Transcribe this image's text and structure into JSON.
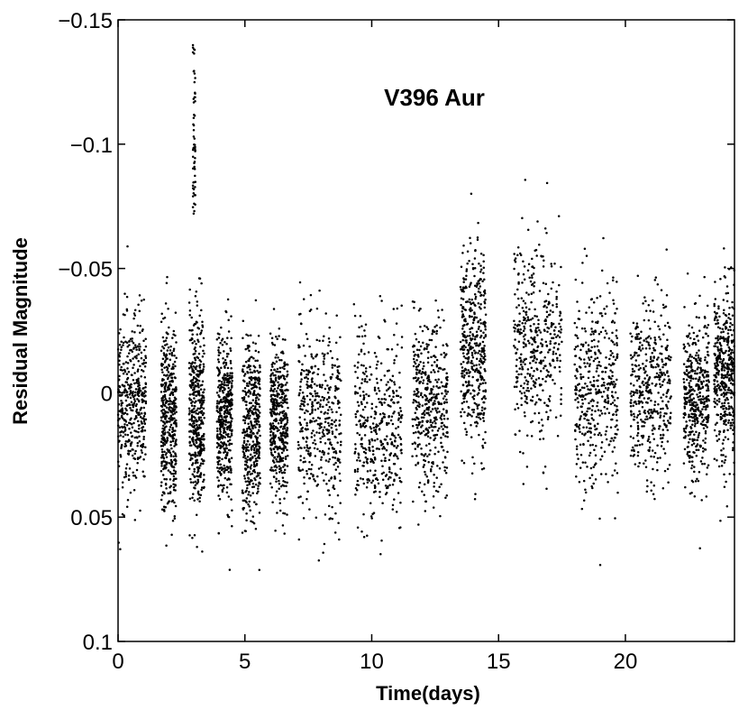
{
  "chart_data": {
    "type": "scatter",
    "title": "V396 Aur",
    "xlabel": "Time(days)",
    "ylabel": "Residual Magnitude",
    "xlim": [
      0,
      24.3
    ],
    "ylim": [
      -0.15,
      0.1
    ],
    "y_axis_inverted": true,
    "grid": false,
    "legend": "none",
    "marker_color": "#000000",
    "x_ticks": [
      0,
      5,
      10,
      15,
      20
    ],
    "x_tick_labels": [
      "0",
      "5",
      "10",
      "15",
      "20"
    ],
    "y_ticks": [
      -0.15,
      -0.1,
      -0.05,
      0,
      0.05,
      0.1
    ],
    "y_tick_labels": [
      "−0.15",
      "−0.1",
      "−0.05",
      "0",
      "0.05",
      "0.1"
    ],
    "observing_windows": [
      {
        "x_range": [
          0.0,
          1.1
        ],
        "mean": 0.005,
        "spread": 0.017
      },
      {
        "x_range": [
          1.7,
          2.3
        ],
        "mean": 0.01,
        "spread": 0.018
      },
      {
        "x_range": [
          2.8,
          3.4
        ],
        "mean": 0.007,
        "spread": 0.02
      },
      {
        "x_range": [
          3.9,
          4.5
        ],
        "mean": 0.01,
        "spread": 0.016
      },
      {
        "x_range": [
          4.9,
          5.6
        ],
        "mean": 0.015,
        "spread": 0.017
      },
      {
        "x_range": [
          6.0,
          6.7
        ],
        "mean": 0.012,
        "spread": 0.016
      },
      {
        "x_range": [
          7.1,
          8.8
        ],
        "mean": 0.01,
        "spread": 0.018
      },
      {
        "x_range": [
          9.3,
          11.2
        ],
        "mean": 0.012,
        "spread": 0.019
      },
      {
        "x_range": [
          11.6,
          13.0
        ],
        "mean": 0.005,
        "spread": 0.018
      },
      {
        "x_range": [
          13.5,
          14.5
        ],
        "mean": -0.02,
        "spread": 0.02
      },
      {
        "x_range": [
          15.6,
          17.5
        ],
        "mean": -0.018,
        "spread": 0.02
      },
      {
        "x_range": [
          18.0,
          19.7
        ],
        "mean": -0.002,
        "spread": 0.02
      },
      {
        "x_range": [
          20.2,
          21.8
        ],
        "mean": -0.002,
        "spread": 0.018
      },
      {
        "x_range": [
          22.3,
          23.3
        ],
        "mean": 0.002,
        "spread": 0.016
      },
      {
        "x_range": [
          23.5,
          24.3
        ],
        "mean": -0.008,
        "spread": 0.018
      }
    ],
    "flare": {
      "x": 3.0,
      "y_min": -0.14,
      "y_max": -0.07
    },
    "points_per_window": 420
  }
}
